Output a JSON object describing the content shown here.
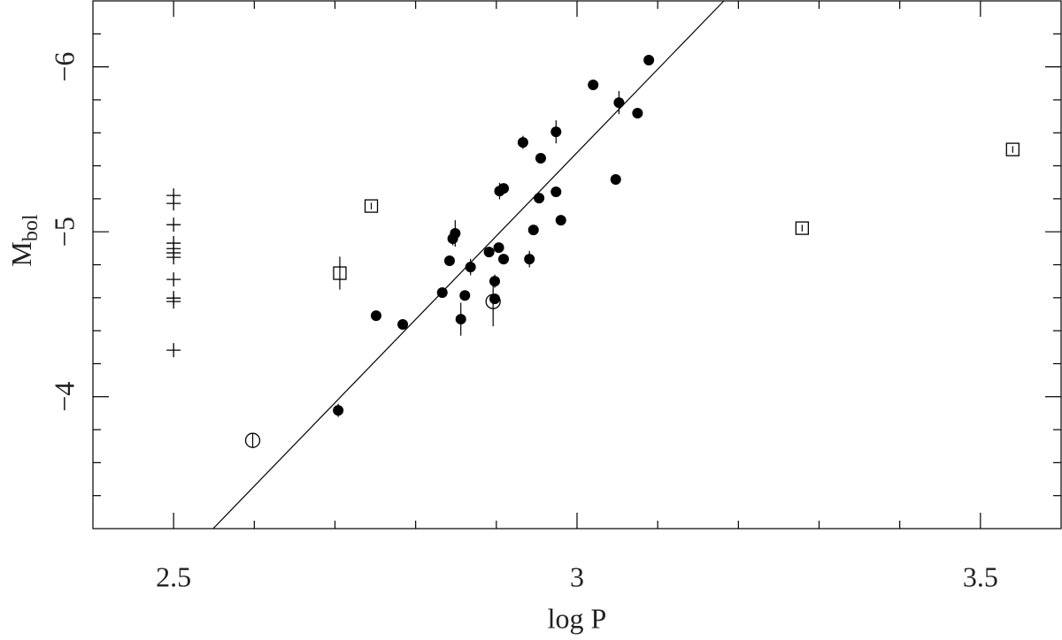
{
  "chart_data": {
    "type": "scatter",
    "x_label": "log P",
    "y_label": "M",
    "y_label_sub": "bol",
    "xlim": [
      2.4,
      3.6
    ],
    "ylim": [
      -3.2,
      -6.4
    ],
    "xticks": [
      2.5,
      3,
      3.5
    ],
    "xminorticks": [
      2.6,
      2.7,
      2.8,
      2.9,
      3.1,
      3.2,
      3.3,
      3.4
    ],
    "yticks": [
      {
        "value": -4,
        "label": "−4"
      },
      {
        "value": -5,
        "label": "−5"
      },
      {
        "value": -6,
        "label": "−6"
      }
    ],
    "yminorticks": [
      -3.4,
      -3.6,
      -3.8,
      -4.2,
      -4.4,
      -4.6,
      -4.8,
      -5.2,
      -5.4,
      -5.6,
      -5.8,
      -6.2
    ],
    "fit": {
      "x": [
        2.549,
        3.182
      ],
      "y": [
        -3.2,
        -6.4
      ]
    },
    "series": [
      {
        "marker": "filled-circle",
        "color": "#000000",
        "x": [
          2.704,
          2.751,
          2.784,
          2.833,
          2.856,
          2.861,
          2.868,
          2.842,
          2.846,
          2.849,
          2.891,
          2.903,
          2.898,
          2.898,
          2.909,
          2.904,
          2.909,
          2.933,
          2.955,
          2.953,
          2.946,
          2.941,
          2.974,
          2.974,
          2.98,
          3.02,
          3.048,
          3.052,
          3.075,
          3.089
        ],
        "y": [
          -3.917,
          -4.491,
          -4.438,
          -4.631,
          -4.47,
          -4.614,
          -4.786,
          -4.824,
          -4.958,
          -4.99,
          -4.877,
          -4.904,
          -4.7,
          -4.593,
          -4.834,
          -5.247,
          -5.263,
          -5.542,
          -5.446,
          -5.204,
          -5.011,
          -4.834,
          -5.242,
          -5.606,
          -5.07,
          -5.891,
          -5.317,
          -5.783,
          -5.719,
          -6.041
        ],
        "errors": [
          0.04,
          0.03,
          0.02,
          0,
          0.1,
          0.03,
          0.05,
          0.02,
          0.04,
          0.08,
          0,
          0.03,
          0.04,
          0.03,
          0.03,
          0.05,
          0,
          0.04,
          0,
          0,
          0,
          0.05,
          0,
          0.07,
          0,
          0,
          0,
          0.07,
          0,
          0
        ]
      },
      {
        "marker": "open-circle",
        "color": "#000000",
        "x": [
          2.598,
          2.896
        ],
        "y": [
          -3.735,
          -4.577
        ],
        "errors": [
          0.04,
          0.15
        ]
      },
      {
        "marker": "square",
        "color": "#000000",
        "x": [
          2.706,
          2.745,
          3.279,
          3.54
        ],
        "y": [
          -4.749,
          -5.156,
          -5.022,
          -5.499
        ],
        "errors": [
          0.1,
          0.02,
          0.02,
          0.02
        ]
      },
      {
        "marker": "plus",
        "color": "#000000",
        "x": [
          2.5,
          2.5,
          2.5,
          2.5,
          2.5,
          2.5,
          2.5,
          2.5,
          2.5,
          2.5,
          2.5
        ],
        "y": [
          -5.22,
          -5.172,
          -5.043,
          -4.931,
          -4.898,
          -4.872,
          -4.845,
          -4.711,
          -4.598,
          -4.577,
          -4.282
        ]
      }
    ]
  }
}
